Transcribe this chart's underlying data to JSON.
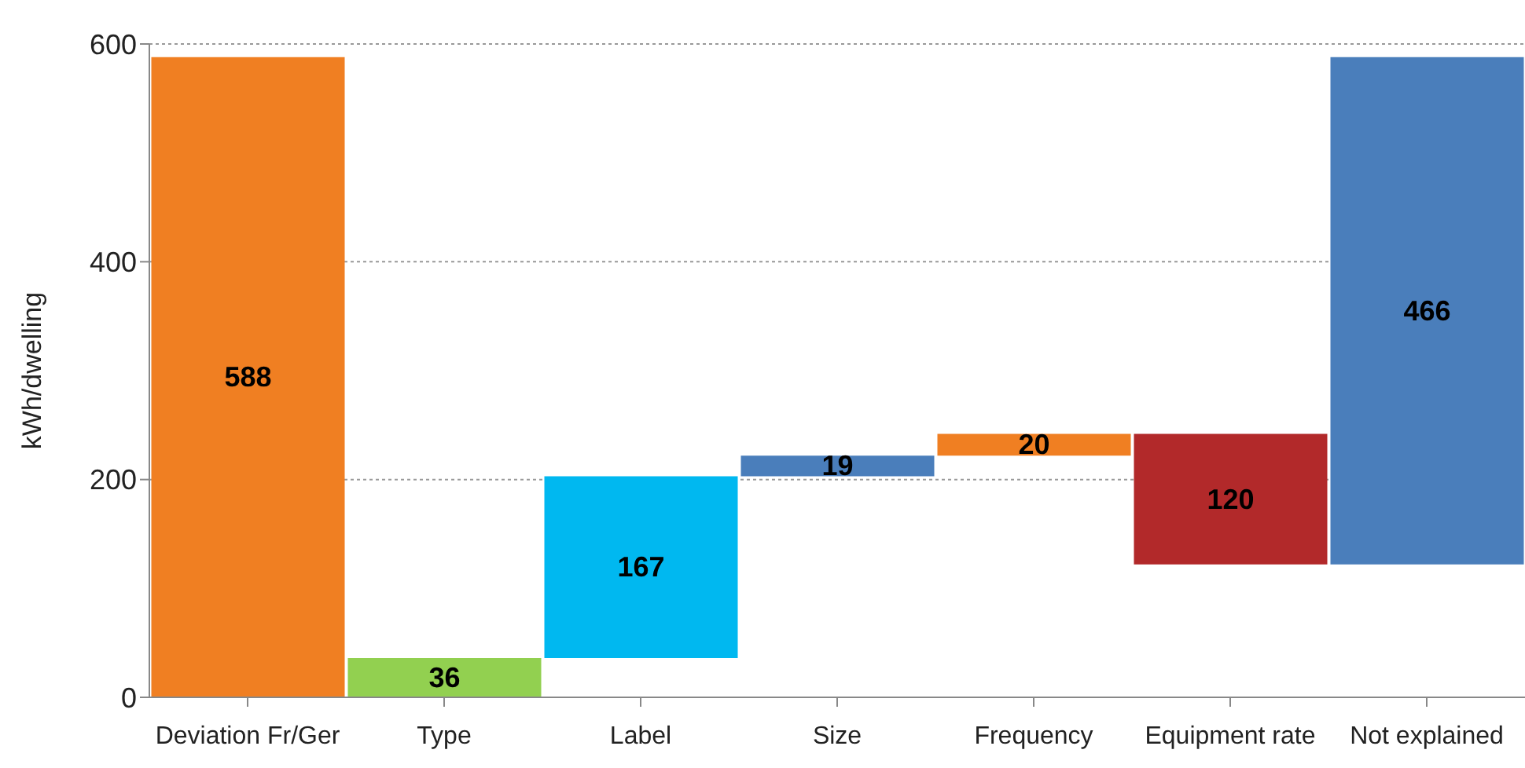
{
  "chart_data": {
    "type": "bar",
    "ylabel": "kWh/dwelling",
    "categories": [
      "Deviation Fr/Ger",
      "Type",
      "Label",
      "Size",
      "Frequency",
      "Equipment rate",
      "Not explained"
    ],
    "values": [
      588,
      36,
      167,
      19,
      20,
      120,
      466
    ],
    "base": [
      0,
      0,
      36,
      203,
      222,
      122,
      122
    ],
    "colors": [
      "#f07f22",
      "#92d050",
      "#00b8f0",
      "#4a7ebb",
      "#f07f22",
      "#b2292a",
      "#4a7ebb"
    ],
    "ylim": [
      0,
      600
    ],
    "yticks": [
      0,
      200,
      400,
      600
    ],
    "grid": "y",
    "data_labels": true
  }
}
